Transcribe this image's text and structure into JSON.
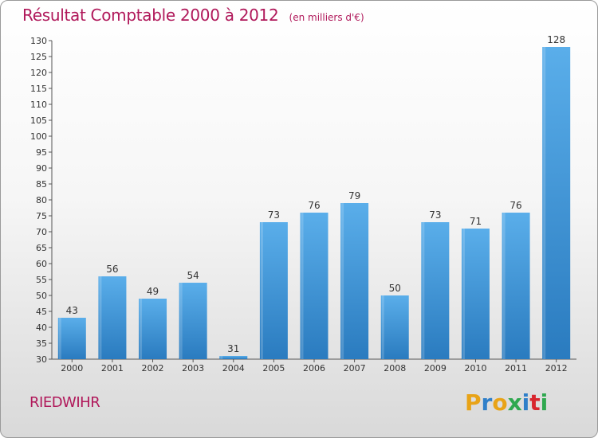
{
  "header": {
    "title": "Résultat Comptable 2000 à 2012",
    "subtitle": "(en milliers d'€)"
  },
  "footer": {
    "commune": "RIEDWIHR",
    "logo_letters": [
      "P",
      "r",
      "o",
      "x",
      "i",
      "t",
      "i"
    ],
    "logo_colors": [
      "#e8a317",
      "#2f7fc9",
      "#e8a317",
      "#2fa84f",
      "#2f7fc9",
      "#d8262e",
      "#2fa84f"
    ]
  },
  "colors": {
    "bar": "#3d96db",
    "title": "#b0185a"
  },
  "chart_data": {
    "type": "bar",
    "title": "Résultat Comptable 2000 à 2012",
    "subtitle": "(en milliers d'€)",
    "categories": [
      "2000",
      "2001",
      "2002",
      "2003",
      "2004",
      "2005",
      "2006",
      "2007",
      "2008",
      "2009",
      "2010",
      "2011",
      "2012"
    ],
    "values": [
      43,
      56,
      49,
      54,
      31,
      73,
      76,
      79,
      50,
      73,
      71,
      76,
      128
    ],
    "ylim": [
      30,
      130
    ],
    "yticks": [
      30,
      35,
      40,
      45,
      50,
      55,
      60,
      65,
      70,
      75,
      80,
      85,
      90,
      95,
      100,
      105,
      110,
      115,
      120,
      125,
      130
    ],
    "grid": false,
    "legend": "none"
  }
}
